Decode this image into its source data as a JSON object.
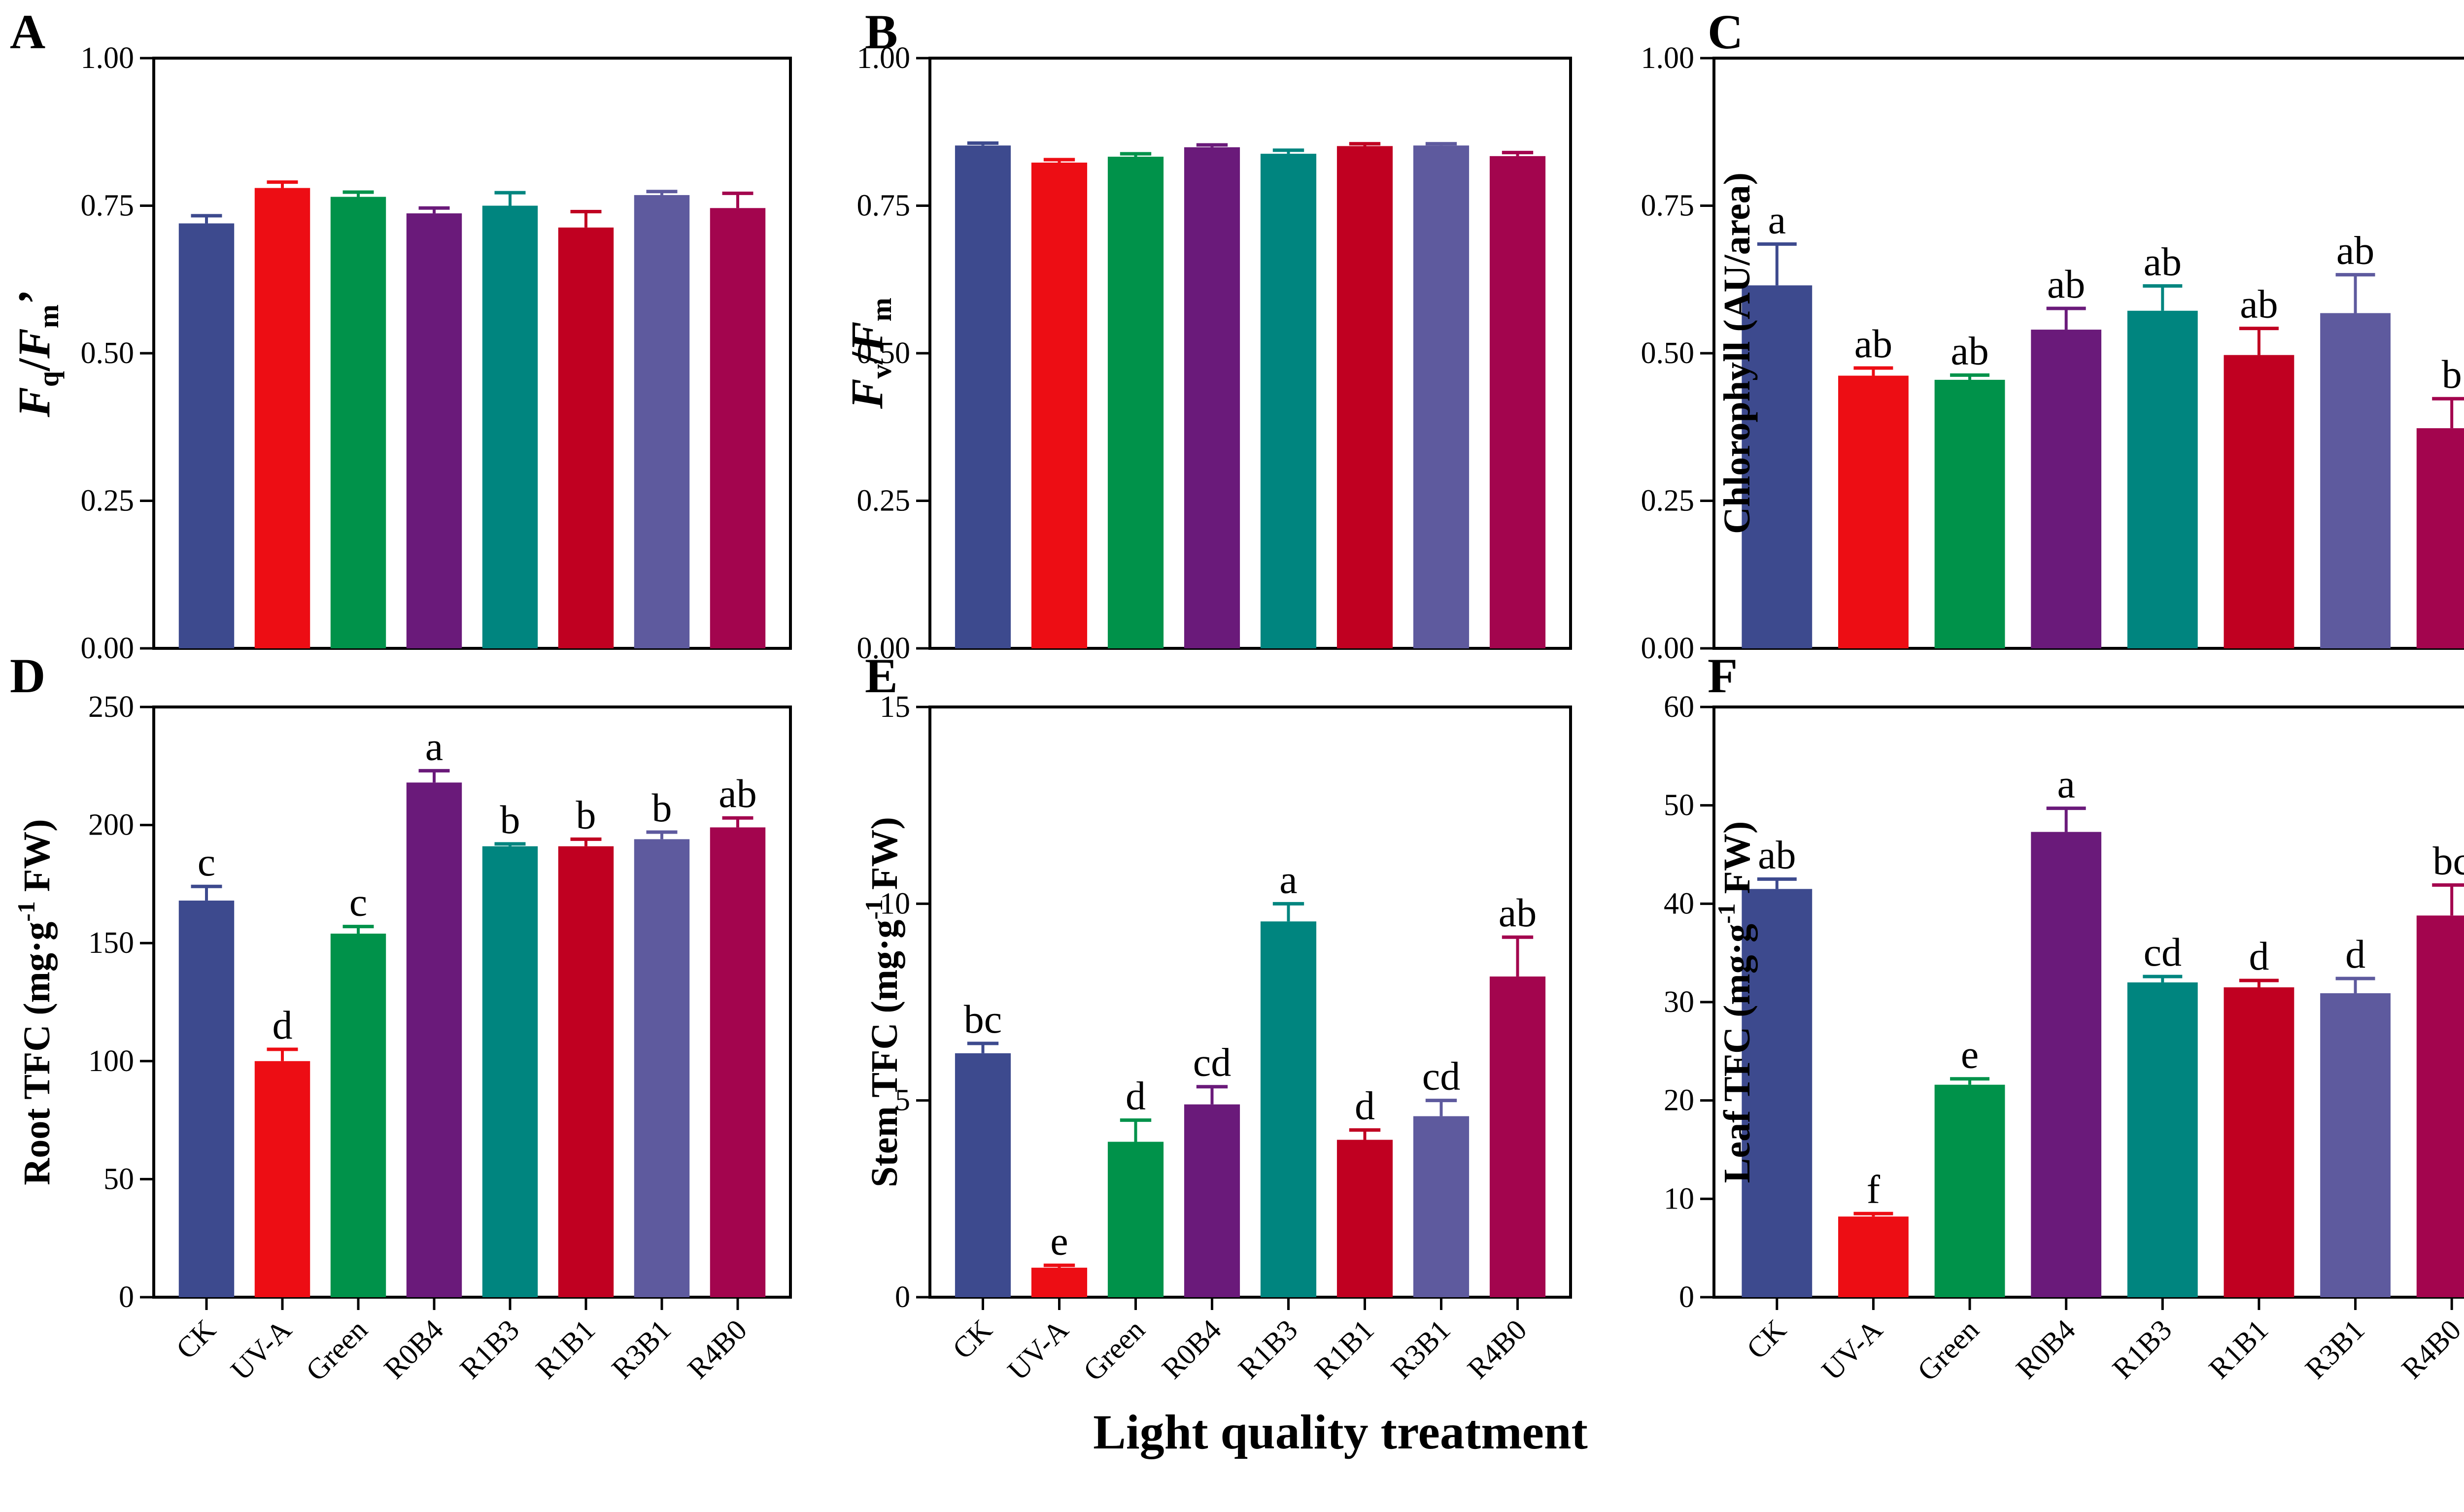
{
  "figure": {
    "x_axis_title": "Light quality treatment"
  },
  "chart_data": [
    {
      "panel": "A",
      "type": "bar",
      "ylabel": {
        "main": "F",
        "sub1": "q",
        "slash": "/",
        "main2": "F",
        "sub2": "m",
        "prime": "’"
      },
      "ylim": [
        0,
        1.0
      ],
      "yticks": [
        "0.00",
        "0.25",
        "0.50",
        "0.75",
        "1.00"
      ],
      "categories": [
        "CK",
        "UV-A",
        "Green",
        "R0B4",
        "R1B3",
        "R1B1",
        "R3B1",
        "R4B0"
      ],
      "values": [
        0.72,
        0.78,
        0.765,
        0.737,
        0.75,
        0.713,
        0.768,
        0.746
      ],
      "errors": [
        0.013,
        0.01,
        0.008,
        0.009,
        0.022,
        0.027,
        0.006,
        0.025
      ],
      "significance": []
    },
    {
      "panel": "B",
      "type": "bar",
      "ylabel": {
        "main": "F",
        "sub1": "v",
        "slash": "/",
        "main2": "F",
        "sub2": "m",
        "prime": ""
      },
      "ylim": [
        0,
        1.0
      ],
      "yticks": [
        "0.00",
        "0.25",
        "0.50",
        "0.75",
        "1.00"
      ],
      "categories": [
        "CK",
        "UV-A",
        "Green",
        "R0B4",
        "R1B3",
        "R1B1",
        "R3B1",
        "R4B0"
      ],
      "values": [
        0.852,
        0.823,
        0.833,
        0.849,
        0.838,
        0.851,
        0.852,
        0.834
      ],
      "errors": [
        0.004,
        0.005,
        0.005,
        0.004,
        0.006,
        0.004,
        0.003,
        0.006
      ],
      "significance": []
    },
    {
      "panel": "C",
      "type": "bar",
      "ylabel": {
        "text": "Chlorophyll (AU/area)"
      },
      "ylim": [
        0,
        1.0
      ],
      "yticks": [
        "0.00",
        "0.25",
        "0.50",
        "0.75",
        "1.00"
      ],
      "categories": [
        "CK",
        "UV-A",
        "Green",
        "R0B4",
        "R1B3",
        "R1B1",
        "R3B1",
        "R4B0"
      ],
      "values": [
        0.615,
        0.462,
        0.455,
        0.54,
        0.572,
        0.497,
        0.568,
        0.373
      ],
      "errors": [
        0.07,
        0.013,
        0.008,
        0.036,
        0.042,
        0.045,
        0.065,
        0.05
      ],
      "significance": [
        "a",
        "ab",
        "ab",
        "ab",
        "ab",
        "ab",
        "ab",
        "b"
      ]
    },
    {
      "panel": "D",
      "type": "bar",
      "ylabel": {
        "pre": "Root TFC (mg·g",
        "sup": "-1",
        "post": " FW)"
      },
      "ylim": [
        0,
        250
      ],
      "yticks": [
        "0",
        "50",
        "100",
        "150",
        "200",
        "250"
      ],
      "categories": [
        "CK",
        "UV-A",
        "Green",
        "R0B4",
        "R1B3",
        "R1B1",
        "R3B1",
        "R4B0"
      ],
      "values": [
        168,
        100,
        154,
        218,
        191,
        191,
        194,
        199
      ],
      "errors": [
        6,
        5,
        3,
        5,
        1,
        3,
        3,
        4
      ],
      "significance": [
        "c",
        "d",
        "c",
        "a",
        "b",
        "b",
        "b",
        "ab"
      ]
    },
    {
      "panel": "E",
      "type": "bar",
      "ylabel": {
        "pre": "Stem TFC (mg·g",
        "sup": "-1",
        "post": " FW)"
      },
      "ylim": [
        0,
        15
      ],
      "yticks": [
        "0",
        "5",
        "10",
        "15"
      ],
      "categories": [
        "CK",
        "UV-A",
        "Green",
        "R0B4",
        "R1B3",
        "R1B1",
        "R3B1",
        "R4B0"
      ],
      "values": [
        6.2,
        0.75,
        3.95,
        4.9,
        9.55,
        4.0,
        4.6,
        8.15
      ],
      "errors": [
        0.25,
        0.06,
        0.55,
        0.45,
        0.45,
        0.25,
        0.4,
        1.0
      ],
      "significance": [
        "bc",
        "e",
        "d",
        "cd",
        "a",
        "d",
        "cd",
        "ab"
      ]
    },
    {
      "panel": "F",
      "type": "bar",
      "ylabel": {
        "pre": "Leaf TFC (mg·g",
        "sup": "-1",
        "post": " FW)"
      },
      "ylim": [
        0,
        60
      ],
      "yticks": [
        "0",
        "10",
        "20",
        "30",
        "40",
        "50",
        "60"
      ],
      "categories": [
        "CK",
        "UV-A",
        "Green",
        "R0B4",
        "R1B3",
        "R1B1",
        "R3B1",
        "R4B0"
      ],
      "values": [
        41.5,
        8.2,
        21.6,
        47.3,
        32.0,
        31.5,
        30.9,
        38.8
      ],
      "errors": [
        1.0,
        0.3,
        0.6,
        2.4,
        0.6,
        0.7,
        1.5,
        3.1
      ],
      "significance": [
        "ab",
        "f",
        "e",
        "a",
        "cd",
        "d",
        "d",
        "bc"
      ]
    }
  ],
  "colors": {
    "bars": [
      "#3d4a8e",
      "#ed0d14",
      "#00924a",
      "#6a1a7a",
      "#00857f",
      "#c00021",
      "#5e5a9e",
      "#a3054e"
    ],
    "axes": "#000000"
  }
}
